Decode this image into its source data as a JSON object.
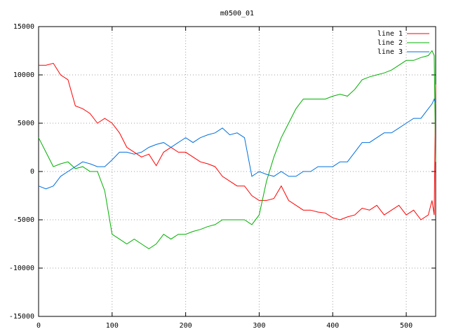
{
  "chart_data": {
    "type": "line",
    "title": "m0500_01",
    "x": [
      0,
      10,
      20,
      30,
      40,
      50,
      60,
      70,
      80,
      90,
      100,
      110,
      120,
      130,
      140,
      150,
      160,
      170,
      180,
      190,
      200,
      210,
      220,
      230,
      240,
      250,
      260,
      270,
      280,
      290,
      300,
      310,
      320,
      330,
      340,
      350,
      360,
      370,
      380,
      390,
      400,
      410,
      420,
      430,
      440,
      450,
      460,
      470,
      480,
      490,
      500,
      510,
      520,
      530,
      535,
      538,
      540
    ],
    "series": [
      {
        "name": "line 1",
        "color": "#ff0000",
        "values": [
          11000,
          11000,
          11200,
          10000,
          9500,
          6800,
          6500,
          6000,
          5000,
          5500,
          5000,
          4000,
          2500,
          2000,
          1500,
          1800,
          600,
          2000,
          2500,
          2000,
          2000,
          1500,
          1000,
          800,
          500,
          -500,
          -1000,
          -1500,
          -1500,
          -2500,
          -3000,
          -3000,
          -2800,
          -1500,
          -3000,
          -3500,
          -4000,
          -4000,
          -4200,
          -4300,
          -4800,
          -5000,
          -4700,
          -4500,
          -3800,
          -4000,
          -3500,
          -4500,
          -4000,
          -3500,
          -4500,
          -4000,
          -5000,
          -4500,
          -3000,
          -4500,
          9000
        ]
      },
      {
        "name": "line 2",
        "color": "#00b000",
        "values": [
          3500,
          2000,
          500,
          800,
          1000,
          300,
          500,
          0,
          0,
          -2000,
          -6500,
          -7000,
          -7500,
          -7000,
          -7500,
          -8000,
          -7500,
          -6500,
          -7000,
          -6500,
          -6500,
          -6200,
          -6000,
          -5700,
          -5500,
          -5000,
          -5000,
          -5000,
          -5000,
          -5500,
          -4500,
          -1000,
          1500,
          3500,
          5000,
          6500,
          7500,
          7500,
          7500,
          7500,
          7800,
          8000,
          7800,
          8500,
          9500,
          9800,
          10000,
          10200,
          10500,
          11000,
          11500,
          11500,
          11800,
          12000,
          12500,
          12000,
          1000
        ]
      },
      {
        "name": "line 3",
        "color": "#0070e0",
        "values": [
          -1500,
          -1800,
          -1500,
          -500,
          0,
          500,
          1000,
          800,
          500,
          500,
          1200,
          2000,
          2000,
          1800,
          2000,
          2500,
          2800,
          3000,
          2500,
          3000,
          3500,
          3000,
          3500,
          3800,
          4000,
          4500,
          3800,
          4000,
          3500,
          -500,
          0,
          -300,
          -500,
          0,
          -500,
          -500,
          0,
          0,
          500,
          500,
          500,
          1000,
          1000,
          2000,
          3000,
          3000,
          3500,
          4000,
          4000,
          4500,
          5000,
          5500,
          5500,
          6500,
          7000,
          7500,
          7000
        ]
      }
    ],
    "xlim": [
      0,
      540
    ],
    "xticks": [
      0,
      100,
      200,
      300,
      400,
      500
    ],
    "ylim": [
      -15000,
      15000
    ],
    "yticks": [
      -15000,
      -10000,
      -5000,
      0,
      5000,
      10000,
      15000
    ],
    "grid": true,
    "legend": "top-right"
  }
}
